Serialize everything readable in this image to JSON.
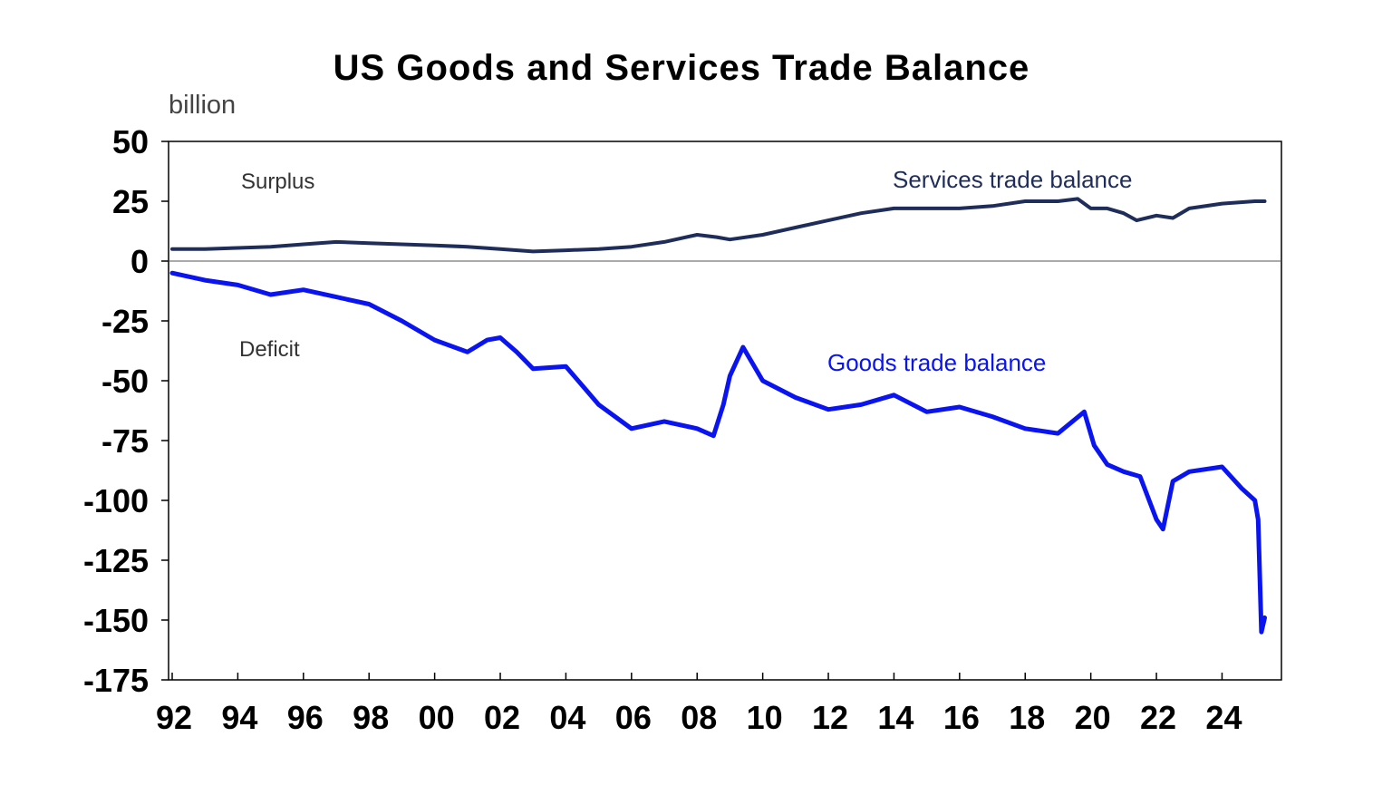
{
  "chart_data": {
    "type": "line",
    "title": "US Goods and Services Trade Balance",
    "ylabel": "billion",
    "xlabel": "",
    "ylim": [
      -175,
      50
    ],
    "yticks": [
      50,
      25,
      0,
      -25,
      -50,
      -75,
      -100,
      -125,
      -150,
      -175
    ],
    "xlim": [
      1992,
      2025.7
    ],
    "xticks": [
      {
        "x": 1992,
        "label": "92"
      },
      {
        "x": 1994,
        "label": "94"
      },
      {
        "x": 1996,
        "label": "96"
      },
      {
        "x": 1998,
        "label": "98"
      },
      {
        "x": 2000,
        "label": "00"
      },
      {
        "x": 2002,
        "label": "02"
      },
      {
        "x": 2004,
        "label": "04"
      },
      {
        "x": 2006,
        "label": "06"
      },
      {
        "x": 2008,
        "label": "08"
      },
      {
        "x": 2010,
        "label": "10"
      },
      {
        "x": 2012,
        "label": "12"
      },
      {
        "x": 2014,
        "label": "14"
      },
      {
        "x": 2016,
        "label": "16"
      },
      {
        "x": 2018,
        "label": "18"
      },
      {
        "x": 2020,
        "label": "20"
      },
      {
        "x": 2022,
        "label": "22"
      },
      {
        "x": 2024,
        "label": "24"
      }
    ],
    "grid": false,
    "annotations": {
      "surplus": "Surplus",
      "deficit": "Deficit"
    },
    "series": [
      {
        "name": "Services trade balance",
        "color": "#1f2d5a",
        "x": [
          1992,
          1993,
          1994,
          1995,
          1996,
          1997,
          1998,
          1999,
          2000,
          2001,
          2002,
          2003,
          2004,
          2005,
          2006,
          2007,
          2008,
          2008.6,
          2009,
          2010,
          2011,
          2012,
          2013,
          2014,
          2015,
          2016,
          2017,
          2018,
          2019,
          2019.6,
          2020,
          2020.5,
          2021,
          2021.4,
          2022,
          2022.5,
          2023,
          2024,
          2025,
          2025.3
        ],
        "values": [
          5,
          5,
          5.5,
          6,
          7,
          8,
          7.5,
          7,
          6.5,
          6,
          5,
          4,
          4.5,
          5,
          6,
          8,
          11,
          10,
          9,
          11,
          14,
          17,
          20,
          22,
          22,
          22,
          23,
          25,
          25,
          26,
          22,
          22,
          20,
          17,
          19,
          18,
          22,
          24,
          25,
          25
        ]
      },
      {
        "name": "Goods trade balance",
        "color": "#0a14f0",
        "x": [
          1992,
          1993,
          1994,
          1995,
          1996,
          1997,
          1998,
          1999,
          2000,
          2001,
          2001.6,
          2002,
          2002.5,
          2003,
          2004,
          2004.5,
          2005,
          2006,
          2007,
          2008,
          2008.5,
          2008.8,
          2009,
          2009.4,
          2010,
          2011,
          2012,
          2013,
          2014,
          2015,
          2016,
          2017,
          2018,
          2019,
          2019.8,
          2020.1,
          2020.5,
          2021,
          2021.5,
          2022,
          2022.2,
          2022.5,
          2023,
          2024,
          2024.6,
          2025,
          2025.1,
          2025.2,
          2025.3
        ],
        "values": [
          -5,
          -8,
          -10,
          -14,
          -12,
          -15,
          -18,
          -25,
          -33,
          -38,
          -33,
          -32,
          -38,
          -45,
          -44,
          -52,
          -60,
          -70,
          -67,
          -70,
          -73,
          -60,
          -48,
          -36,
          -50,
          -57,
          -62,
          -60,
          -56,
          -63,
          -61,
          -65,
          -70,
          -72,
          -63,
          -77,
          -85,
          -88,
          -90,
          -108,
          -112,
          -92,
          -88,
          -86,
          -95,
          -100,
          -108,
          -155,
          -149
        ]
      }
    ]
  }
}
